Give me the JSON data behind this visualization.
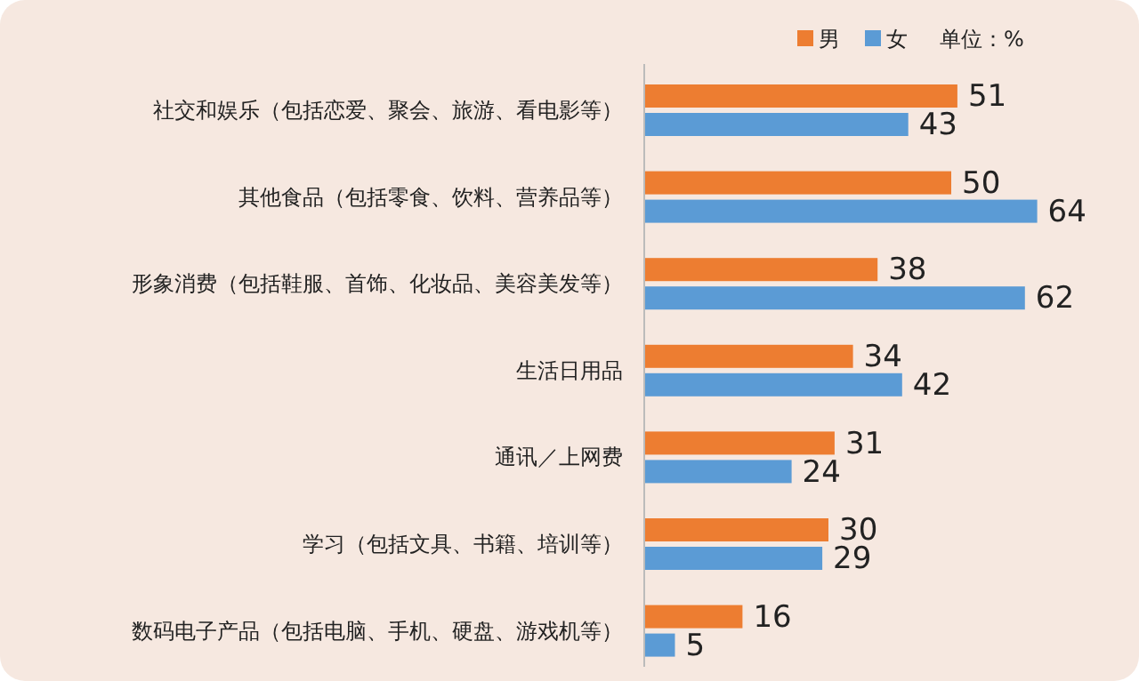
{
  "chart_data": {
    "type": "bar",
    "orientation": "horizontal",
    "categories": [
      "社交和娱乐（包括恋爱、聚会、旅游、看电影等）",
      "其他食品（包括零食、饮料、营养品等）",
      "形象消费（包括鞋服、首饰、化妆品、美容美发等）",
      "生活日用品",
      "通讯／上网费",
      "学习（包括文具、书籍、培训等）",
      "数码电子产品（包括电脑、手机、硬盘、游戏机等）"
    ],
    "series": [
      {
        "name": "男",
        "color": "#ed7d31",
        "values": [
          51,
          50,
          38,
          34,
          31,
          30,
          16
        ]
      },
      {
        "name": "女",
        "color": "#5b9bd5",
        "values": [
          43,
          64,
          62,
          42,
          24,
          29,
          5
        ]
      }
    ],
    "data_labels": true,
    "legend": "top right",
    "annotations": [
      "单位：%"
    ]
  }
}
